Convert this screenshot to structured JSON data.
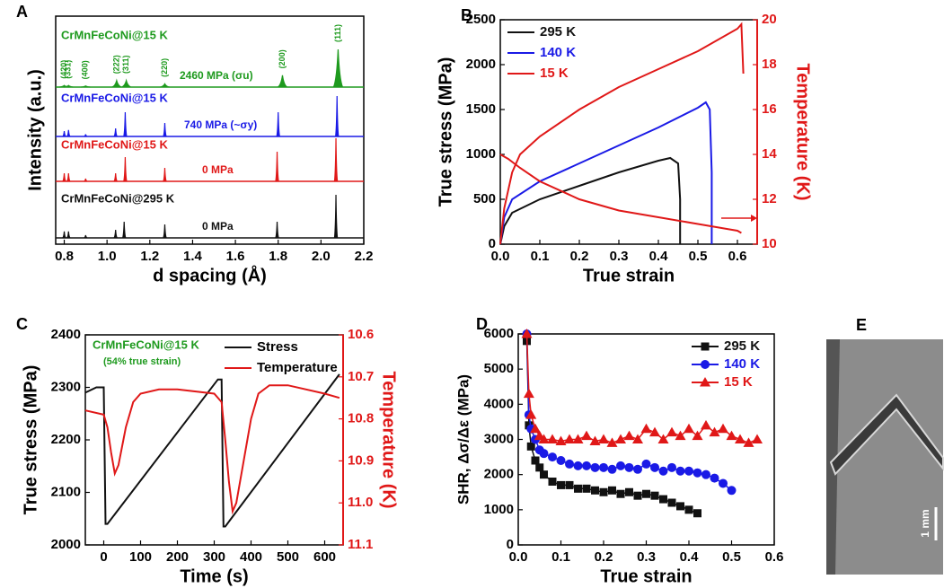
{
  "chart_data": [
    {
      "panel": "A",
      "type": "spectrum",
      "xlabel": "d spacing (Å)",
      "ylabel": "Intensity (a.u.)",
      "xlim": [
        0.76,
        2.2
      ],
      "xticks": [
        0.8,
        {
          "value": 1,
          "label": "1.0"
        },
        1.2,
        1.4,
        1.6,
        1.8,
        {
          "value": 2,
          "label": "2.0"
        },
        2.2
      ],
      "series": [
        {
          "name": "CrMnFeCoNi@15 K",
          "annotation": "2460 MPa (σu)",
          "color": "#1e9a1e",
          "x": [
            0.8,
            0.82,
            0.9,
            1.045,
            1.09,
            1.27,
            1.82,
            2.08
          ],
          "values": [
            3,
            3,
            2,
            12,
            12,
            6,
            22,
            70
          ],
          "peak_labels": [
            "(420)",
            "(331)",
            "(400)",
            "(222)",
            "(311)",
            "(220)",
            "(200)",
            "(111)"
          ]
        },
        {
          "name": "CrMnFeCoNi@15 K",
          "annotation": "740 MPa (~σy)",
          "color": "#1a1ae6",
          "x": [
            0.8,
            0.82,
            0.9,
            1.04,
            1.085,
            1.27,
            1.8,
            2.075
          ],
          "values": [
            10,
            12,
            4,
            15,
            45,
            25,
            45,
            75
          ]
        },
        {
          "name": "CrMnFeCoNi@15 K",
          "annotation": "0 MPa",
          "color": "#e01818",
          "x": [
            0.8,
            0.82,
            0.9,
            1.04,
            1.085,
            1.27,
            1.795,
            2.07
          ],
          "values": [
            15,
            15,
            5,
            15,
            45,
            25,
            55,
            80
          ]
        },
        {
          "name": "CrMnFeCoNi@295 K",
          "annotation": "0 MPa",
          "color": "#111111",
          "x": [
            0.8,
            0.82,
            0.9,
            1.04,
            1.08,
            1.27,
            1.795,
            2.07
          ],
          "values": [
            12,
            12,
            5,
            15,
            30,
            25,
            30,
            80
          ]
        }
      ]
    },
    {
      "panel": "B",
      "type": "line",
      "xlabel": "True strain",
      "ylabel": "True stress (MPa)",
      "y2label": "Temperature (K)",
      "xlim": [
        0,
        0.65
      ],
      "xticks": [
        {
          "value": 0,
          "label": "0.0"
        },
        0.1,
        0.2,
        0.3,
        0.4,
        0.5,
        0.6
      ],
      "ylim": [
        0,
        2500
      ],
      "yticks": [
        0,
        500,
        1000,
        1500,
        2000,
        2500
      ],
      "y2lim": [
        10,
        20
      ],
      "y2ticks": [
        10,
        12,
        14,
        16,
        18,
        20
      ],
      "y2color": "#e01818",
      "legend": "top-left",
      "series": [
        {
          "name": "295 K",
          "color": "#111111",
          "x": [
            0,
            0.01,
            0.03,
            0.1,
            0.2,
            0.3,
            0.4,
            0.43,
            0.45,
            0.455,
            0.455
          ],
          "values": [
            0,
            200,
            350,
            500,
            650,
            800,
            930,
            960,
            900,
            500,
            0
          ]
        },
        {
          "name": "140 K",
          "color": "#1a1ae6",
          "x": [
            0,
            0.01,
            0.03,
            0.1,
            0.2,
            0.3,
            0.4,
            0.5,
            0.52,
            0.53,
            0.535,
            0.535
          ],
          "values": [
            0,
            300,
            500,
            700,
            900,
            1100,
            1300,
            1520,
            1580,
            1500,
            800,
            0
          ]
        },
        {
          "name": "15 K",
          "color": "#e01818",
          "x": [
            0,
            0.01,
            0.03,
            0.05,
            0.1,
            0.2,
            0.3,
            0.4,
            0.5,
            0.6,
            0.61,
            0.615
          ],
          "values": [
            0,
            400,
            800,
            1000,
            1200,
            1500,
            1750,
            1950,
            2150,
            2400,
            2450,
            1900
          ]
        },
        {
          "color": "#e01818",
          "axis": "y2",
          "x": [
            0,
            0.02,
            0.05,
            0.1,
            0.2,
            0.3,
            0.4,
            0.5,
            0.6,
            0.61
          ],
          "values": [
            14,
            13.8,
            13.4,
            12.8,
            12.0,
            11.5,
            11.2,
            10.9,
            10.6,
            10.5
          ]
        }
      ]
    },
    {
      "panel": "C",
      "type": "line",
      "xlabel": "Time (s)",
      "ylabel": "True stress (MPa)",
      "y2label": "Temperature (K)",
      "annotations": [
        "CrMnFeCoNi@15 K",
        "(54% true strain)"
      ],
      "xlim": [
        -50,
        650
      ],
      "xticks": [
        0,
        100,
        200,
        300,
        400,
        500,
        600
      ],
      "ylim": [
        2000,
        2400
      ],
      "yticks": [
        2000,
        2100,
        2200,
        2300,
        2400
      ],
      "y2lim": [
        11.1,
        10.6
      ],
      "y2ticks": [
        10.6,
        10.7,
        10.8,
        10.9,
        {
          "value": 11,
          "label": "11.0"
        },
        11.1
      ],
      "y2color": "#e01818",
      "legend": "top-right",
      "series": [
        {
          "name": "Stress",
          "color": "#111111",
          "x": [
            -50,
            -20,
            0,
            5,
            10,
            310,
            320,
            325,
            330,
            640
          ],
          "values": [
            2290,
            2300,
            2300,
            2040,
            2040,
            2315,
            2315,
            2035,
            2035,
            2325
          ]
        },
        {
          "name": "Temperature",
          "color": "#e01818",
          "axis": "y2",
          "x": [
            -50,
            0,
            10,
            20,
            30,
            40,
            60,
            80,
            100,
            150,
            200,
            300,
            320,
            330,
            340,
            350,
            360,
            380,
            400,
            420,
            450,
            500,
            600,
            640
          ],
          "values": [
            10.78,
            10.79,
            10.82,
            10.88,
            10.93,
            10.91,
            10.82,
            10.76,
            10.74,
            10.73,
            10.73,
            10.74,
            10.76,
            10.85,
            10.95,
            11.02,
            11.0,
            10.9,
            10.8,
            10.74,
            10.72,
            10.72,
            10.74,
            10.75
          ]
        }
      ]
    },
    {
      "panel": "D",
      "type": "scatter",
      "xlabel": "True strain",
      "ylabel": "SHR, Δσ/Δε (MPa)",
      "xlim": [
        0,
        0.6
      ],
      "xticks": [
        {
          "value": 0,
          "label": "0.0"
        },
        0.1,
        0.2,
        0.3,
        0.4,
        0.5,
        0.6
      ],
      "ylim": [
        0,
        6000
      ],
      "yticks": [
        0,
        1000,
        2000,
        3000,
        4000,
        5000,
        6000
      ],
      "legend": "top-right",
      "series": [
        {
          "name": "295 K",
          "color": "#111111",
          "marker": "square",
          "x": [
            0.02,
            0.025,
            0.03,
            0.04,
            0.05,
            0.06,
            0.08,
            0.1,
            0.12,
            0.14,
            0.16,
            0.18,
            0.2,
            0.22,
            0.24,
            0.26,
            0.28,
            0.3,
            0.32,
            0.34,
            0.36,
            0.38,
            0.4,
            0.42
          ],
          "values": [
            5800,
            3400,
            2800,
            2400,
            2200,
            2000,
            1800,
            1700,
            1700,
            1600,
            1600,
            1550,
            1500,
            1550,
            1450,
            1500,
            1400,
            1450,
            1400,
            1300,
            1200,
            1100,
            1000,
            900
          ]
        },
        {
          "name": "140 K",
          "color": "#1a1ae6",
          "marker": "circle",
          "x": [
            0.02,
            0.025,
            0.03,
            0.04,
            0.05,
            0.06,
            0.08,
            0.1,
            0.12,
            0.14,
            0.16,
            0.18,
            0.2,
            0.22,
            0.24,
            0.26,
            0.28,
            0.3,
            0.32,
            0.34,
            0.36,
            0.38,
            0.4,
            0.42,
            0.44,
            0.46,
            0.48,
            0.5
          ],
          "values": [
            6000,
            3700,
            3300,
            3000,
            2700,
            2600,
            2500,
            2400,
            2300,
            2250,
            2250,
            2200,
            2200,
            2150,
            2250,
            2200,
            2150,
            2300,
            2200,
            2100,
            2200,
            2100,
            2100,
            2050,
            2000,
            1900,
            1750,
            1550
          ]
        },
        {
          "name": "15 K",
          "color": "#e01818",
          "marker": "triangle",
          "x": [
            0.02,
            0.025,
            0.03,
            0.04,
            0.05,
            0.06,
            0.08,
            0.1,
            0.12,
            0.14,
            0.16,
            0.18,
            0.2,
            0.22,
            0.24,
            0.26,
            0.28,
            0.3,
            0.32,
            0.34,
            0.36,
            0.38,
            0.4,
            0.42,
            0.44,
            0.46,
            0.48,
            0.5,
            0.52,
            0.54,
            0.56
          ],
          "values": [
            6000,
            4300,
            3700,
            3300,
            3100,
            3000,
            3000,
            2950,
            3000,
            3000,
            3100,
            2950,
            3000,
            2900,
            3000,
            3100,
            3000,
            3300,
            3200,
            3000,
            3200,
            3100,
            3300,
            3100,
            3400,
            3200,
            3300,
            3100,
            3000,
            2900,
            3000
          ]
        }
      ]
    }
  ],
  "panel_e": {
    "label": "E",
    "scale_bar": "1 mm"
  }
}
